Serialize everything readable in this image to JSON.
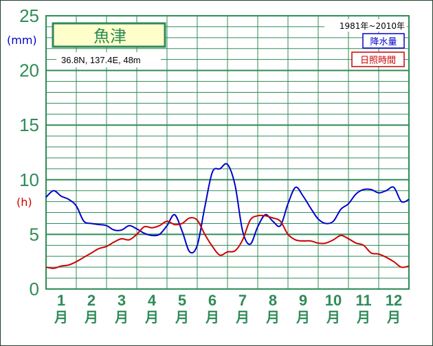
{
  "station": {
    "name": "魚津",
    "location": "36.8N,  137.4E,  48m",
    "period": "1981年~2010年"
  },
  "units": {
    "precip": "(mm)",
    "sunshine": "(h)"
  },
  "legend": {
    "precip": "降水量",
    "sunshine": "日照時間"
  },
  "colors": {
    "grid": "#2e8b57",
    "precip": "#0000cc",
    "sunshine": "#cc0000",
    "label_bg": "#ffffcc"
  },
  "chart_data": {
    "type": "line",
    "title": "魚津",
    "ylim": [
      0,
      25
    ],
    "y_ticks": [
      "0",
      "5",
      "10",
      "15",
      "20",
      "25"
    ],
    "x_tick_labels": [
      {
        "num": "1",
        "char": "月"
      },
      {
        "num": "2",
        "char": "月"
      },
      {
        "num": "3",
        "char": "月"
      },
      {
        "num": "4",
        "char": "月"
      },
      {
        "num": "5",
        "char": "月"
      },
      {
        "num": "6",
        "char": "月"
      },
      {
        "num": "7",
        "char": "月"
      },
      {
        "num": "8",
        "char": "月"
      },
      {
        "num": "9",
        "char": "月"
      },
      {
        "num": "10",
        "char": "月"
      },
      {
        "num": "11",
        "char": "月"
      },
      {
        "num": "12",
        "char": "月"
      }
    ],
    "x_range": [
      0.5,
      12.5
    ],
    "grid": true,
    "legend_position": "top-right",
    "series": [
      {
        "name": "降水量",
        "unit": "mm",
        "x": [
          0.5,
          0.75,
          1.0,
          1.25,
          1.5,
          1.75,
          2.0,
          2.25,
          2.5,
          2.75,
          3.0,
          3.25,
          3.5,
          3.75,
          4.0,
          4.25,
          4.5,
          4.75,
          5.0,
          5.25,
          5.5,
          5.75,
          6.0,
          6.25,
          6.5,
          6.75,
          7.0,
          7.25,
          7.5,
          7.75,
          8.0,
          8.25,
          8.5,
          8.75,
          9.0,
          9.25,
          9.5,
          9.75,
          10.0,
          10.25,
          10.5,
          10.75,
          11.0,
          11.25,
          11.5,
          11.75,
          12.0,
          12.25,
          12.5
        ],
        "values": [
          8.4,
          9.0,
          8.5,
          8.2,
          7.6,
          6.2,
          6.0,
          5.9,
          5.8,
          5.4,
          5.4,
          5.8,
          5.5,
          5.1,
          4.9,
          5.0,
          5.8,
          6.8,
          5.3,
          3.4,
          4.0,
          7.5,
          10.7,
          11.0,
          11.4,
          9.5,
          5.3,
          4.1,
          5.7,
          6.8,
          6.2,
          5.8,
          7.8,
          9.3,
          8.5,
          7.4,
          6.4,
          6.0,
          6.2,
          7.3,
          7.8,
          8.7,
          9.1,
          9.1,
          8.8,
          9.0,
          9.3,
          8.0,
          8.2
        ]
      },
      {
        "name": "日照時間",
        "unit": "h",
        "x": [
          0.5,
          0.75,
          1.0,
          1.25,
          1.5,
          1.75,
          2.0,
          2.25,
          2.5,
          2.75,
          3.0,
          3.25,
          3.5,
          3.75,
          4.0,
          4.25,
          4.5,
          4.75,
          5.0,
          5.25,
          5.5,
          5.75,
          6.0,
          6.25,
          6.5,
          6.75,
          7.0,
          7.25,
          7.5,
          7.75,
          8.0,
          8.25,
          8.5,
          8.75,
          9.0,
          9.25,
          9.5,
          9.75,
          10.0,
          10.25,
          10.5,
          10.75,
          11.0,
          11.25,
          11.5,
          11.75,
          12.0,
          12.25,
          12.5
        ],
        "values": [
          2.0,
          1.9,
          2.1,
          2.2,
          2.5,
          2.9,
          3.3,
          3.7,
          3.9,
          4.3,
          4.6,
          4.5,
          5.0,
          5.7,
          5.6,
          5.8,
          6.2,
          5.9,
          6.0,
          6.5,
          6.3,
          5.0,
          3.9,
          3.1,
          3.4,
          3.5,
          4.5,
          6.3,
          6.7,
          6.7,
          6.5,
          6.2,
          5.0,
          4.5,
          4.4,
          4.4,
          4.2,
          4.2,
          4.5,
          4.9,
          4.6,
          4.2,
          4.0,
          3.3,
          3.2,
          2.9,
          2.5,
          2.0,
          2.1
        ]
      }
    ]
  }
}
